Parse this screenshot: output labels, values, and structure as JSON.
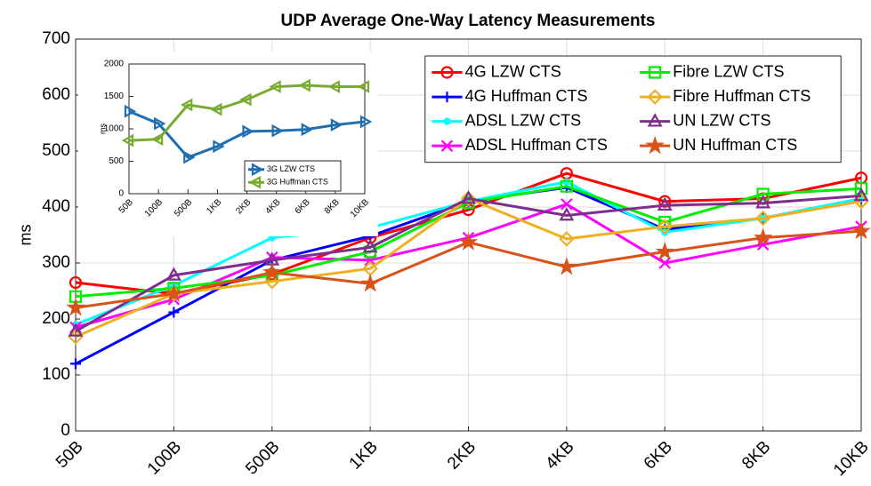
{
  "chart_data": [
    {
      "type": "line",
      "title": "UDP Average One-Way Latency Measurements",
      "y_label": "ms",
      "categories": [
        "50B",
        "100B",
        "500B",
        "1KB",
        "2KB",
        "4KB",
        "6KB",
        "8KB",
        "10KB"
      ],
      "ylim": [
        0,
        700
      ],
      "yticks": [
        0,
        100,
        200,
        300,
        400,
        500,
        600,
        700
      ],
      "grid": true,
      "legend": "top-right",
      "series": [
        {
          "name": "4G LZW CTS",
          "color": "#ff0000",
          "marker": "circle",
          "values": [
            265,
            245,
            280,
            345,
            395,
            460,
            410,
            415,
            452
          ]
        },
        {
          "name": "4G Huffman CTS",
          "color": "#0000ff",
          "marker": "plus",
          "values": [
            120,
            212,
            305,
            348,
            410,
            435,
            360,
            380,
            415
          ]
        },
        {
          "name": "ADSL LZW CTS",
          "color": "#00ffff",
          "marker": "dot",
          "values": [
            190,
            260,
            345,
            363,
            410,
            445,
            355,
            380,
            415
          ]
        },
        {
          "name": "ADSL Huffman CTS",
          "color": "#ff00ff",
          "marker": "x",
          "values": [
            185,
            235,
            310,
            305,
            345,
            405,
            300,
            333,
            365
          ]
        },
        {
          "name": "Fibre LZW CTS",
          "color": "#00ee00",
          "marker": "square",
          "values": [
            240,
            255,
            278,
            320,
            408,
            437,
            373,
            423,
            433
          ]
        },
        {
          "name": "Fibre Huffman CTS",
          "color": "#edb120",
          "marker": "diamond",
          "values": [
            168,
            245,
            267,
            290,
            415,
            343,
            365,
            380,
            410
          ]
        },
        {
          "name": "UN LZW CTS",
          "color": "#7e2f8e",
          "marker": "triangle",
          "values": [
            178,
            278,
            305,
            328,
            415,
            385,
            403,
            407,
            420
          ]
        },
        {
          "name": "UN Huffman CTS",
          "color": "#d95319",
          "marker": "star",
          "values": [
            220,
            245,
            283,
            263,
            337,
            293,
            320,
            345,
            357
          ]
        }
      ]
    },
    {
      "type": "line",
      "y_label": "ms",
      "categories": [
        "50B",
        "100B",
        "500B",
        "1KB",
        "2KB",
        "4KB",
        "6KB",
        "8KB",
        "10KB"
      ],
      "ylim": [
        0,
        2000
      ],
      "yticks": [
        0,
        500,
        1000,
        1500,
        2000
      ],
      "grid": false,
      "legend": "bottom-right",
      "series": [
        {
          "name": "3G LZW CTS",
          "color": "#1f6fb0",
          "marker": "triangle-right",
          "values": [
            1270,
            1080,
            560,
            730,
            960,
            970,
            990,
            1060,
            1110
          ]
        },
        {
          "name": "3G Huffman CTS",
          "color": "#77ac30",
          "marker": "triangle-left",
          "values": [
            820,
            840,
            1370,
            1300,
            1450,
            1650,
            1670,
            1650,
            1650
          ]
        }
      ]
    }
  ]
}
